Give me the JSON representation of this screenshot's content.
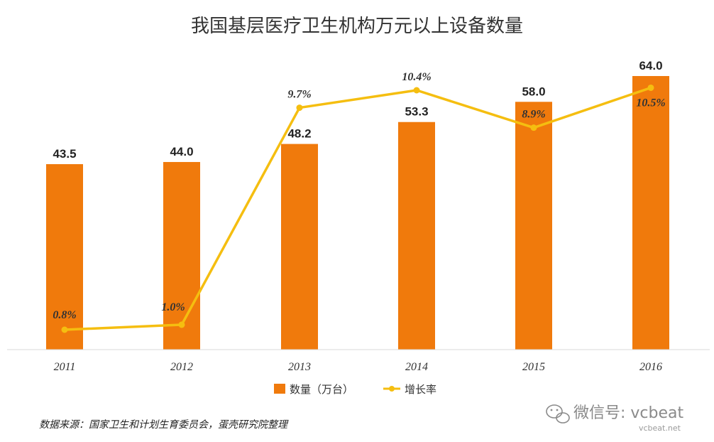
{
  "chart_data": {
    "type": "bar",
    "title": "我国基层医疗卫生机构万元以上设备数量",
    "categories": [
      "2011",
      "2012",
      "2013",
      "2014",
      "2015",
      "2016"
    ],
    "series": [
      {
        "name": "数量（万台）",
        "type": "bar",
        "color": "#F07A0C",
        "values": [
          43.5,
          44.0,
          48.2,
          53.3,
          58.0,
          64.0
        ],
        "labels": [
          "43.5",
          "44.0",
          "48.2",
          "53.3",
          "58.0",
          "64.0"
        ]
      },
      {
        "name": "增长率",
        "type": "line",
        "color": "#F5BE10",
        "values": [
          0.8,
          1.0,
          9.7,
          10.4,
          8.9,
          10.5
        ],
        "labels": [
          "0.8%",
          "1.0%",
          "9.7%",
          "10.4%",
          "8.9%",
          "10.5%"
        ]
      }
    ],
    "grid": false,
    "legend": "bottom"
  },
  "source_note": "数据来源：国家卫生和计划生育委员会，蛋壳研究院整理",
  "watermark": {
    "text": "微信号: vcbeat",
    "url": "vcbeat.net",
    "icon": "wechat-icon"
  }
}
